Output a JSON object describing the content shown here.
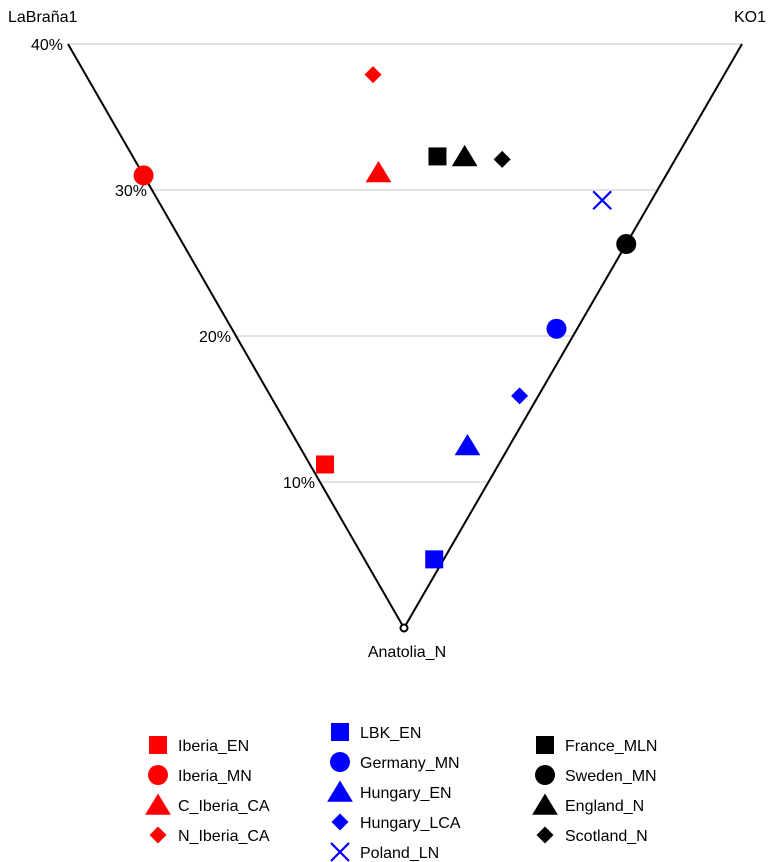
{
  "chart_data": {
    "type": "scatter",
    "subtype": "ternary",
    "vertices": {
      "top_left": "LaBraña1",
      "top_right": "KO1",
      "bottom": "Anatolia_N"
    },
    "grid": true,
    "grid_levels": [
      10,
      20,
      30,
      40
    ],
    "tick_labels": [
      "10%",
      "20%",
      "30%",
      "40%"
    ],
    "legend_position": "bottom",
    "series": [
      {
        "name": "Iberia_EN",
        "color": "#ff0000",
        "marker": "square",
        "hunter_gatherer_pct": 11.2,
        "ko1_share": 0.08
      },
      {
        "name": "Iberia_MN",
        "color": "#ff0000",
        "marker": "circle",
        "hunter_gatherer_pct": 31.0,
        "ko1_share": 0.0
      },
      {
        "name": "C_Iberia_CA",
        "color": "#ff0000",
        "marker": "triangle",
        "hunter_gatherer_pct": 31.2,
        "ko1_share": 0.45
      },
      {
        "name": "N_Iberia_CA",
        "color": "#ff0000",
        "marker": "diamond",
        "hunter_gatherer_pct": 37.9,
        "ko1_share": 0.45
      },
      {
        "name": "LBK_EN",
        "color": "#0000ff",
        "marker": "square",
        "hunter_gatherer_pct": 4.7,
        "ko1_share": 0.88
      },
      {
        "name": "Germany_MN",
        "color": "#0000ff",
        "marker": "circle",
        "hunter_gatherer_pct": 20.5,
        "ko1_share": 0.94
      },
      {
        "name": "Hungary_EN",
        "color": "#0000ff",
        "marker": "triangle",
        "hunter_gatherer_pct": 12.5,
        "ko1_share": 0.8
      },
      {
        "name": "Hungary_LCA",
        "color": "#0000ff",
        "marker": "diamond",
        "hunter_gatherer_pct": 15.9,
        "ko1_share": 0.93
      },
      {
        "name": "Poland_LN",
        "color": "#0000ff",
        "marker": "x",
        "hunter_gatherer_pct": 29.3,
        "ko1_share": 0.9
      },
      {
        "name": "France_MLN",
        "color": "#000000",
        "marker": "square",
        "hunter_gatherer_pct": 32.3,
        "ko1_share": 0.56
      },
      {
        "name": "Sweden_MN",
        "color": "#000000",
        "marker": "circle",
        "hunter_gatherer_pct": 26.3,
        "ko1_share": 1.0
      },
      {
        "name": "England_N",
        "color": "#000000",
        "marker": "triangle",
        "hunter_gatherer_pct": 32.3,
        "ko1_share": 0.61
      },
      {
        "name": "Scotland_N",
        "color": "#000000",
        "marker": "diamond",
        "hunter_gatherer_pct": 32.1,
        "ko1_share": 0.68
      }
    ],
    "legend_columns": [
      [
        "Iberia_EN",
        "Iberia_MN",
        "C_Iberia_CA",
        "N_Iberia_CA"
      ],
      [
        "LBK_EN",
        "Germany_MN",
        "Hungary_EN",
        "Hungary_LCA",
        "Poland_LN"
      ],
      [
        "France_MLN",
        "Sweden_MN",
        "England_N",
        "Scotland_N"
      ]
    ]
  }
}
